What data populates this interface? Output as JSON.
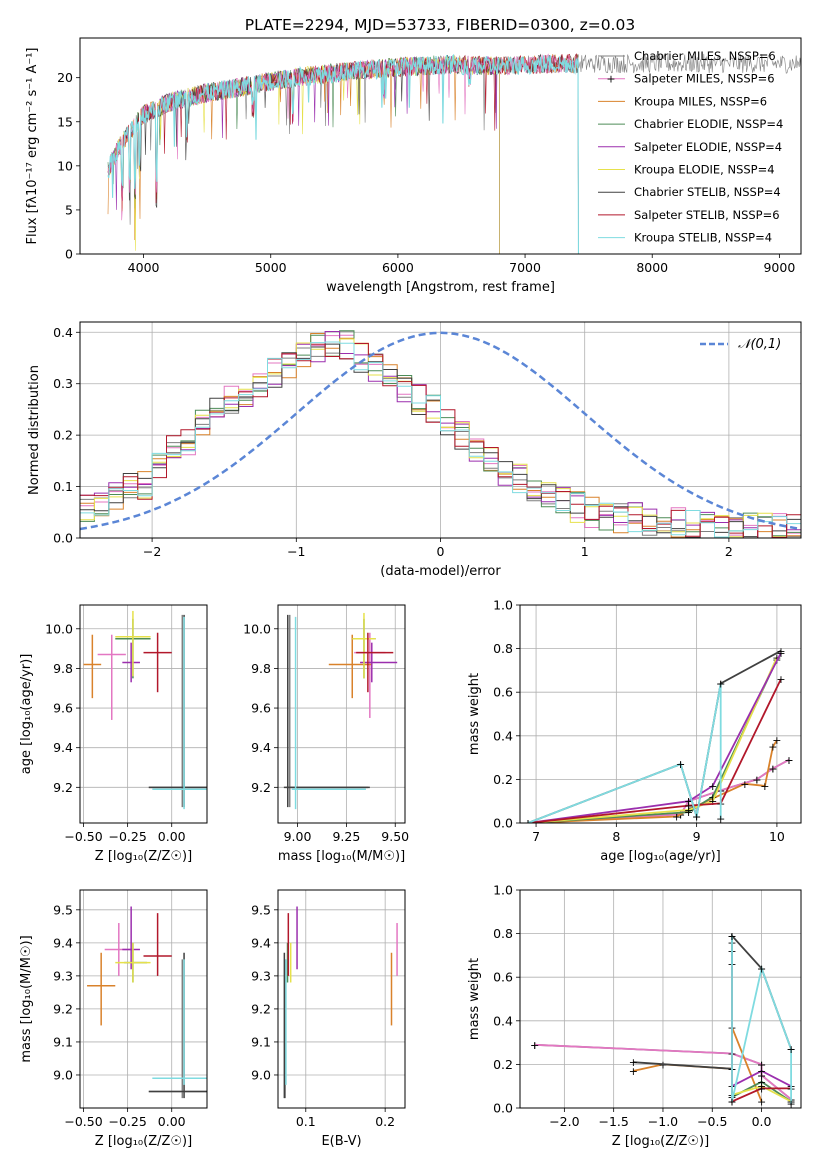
{
  "figure_title": "PLATE=2294, MJD=53733, FIBERID=0300, z=0.03",
  "series_colors": [
    "#7f7f7f",
    "#e377c2",
    "#d9822b",
    "#4d8c57",
    "#9b2fae",
    "#e6e14b",
    "#404040",
    "#b2182b",
    "#7fdbe0"
  ],
  "chart_data": [
    {
      "id": "spectrum",
      "type": "line",
      "xlabel": "wavelength [Angstrom, rest frame]",
      "ylabel": "Flux [fλ10⁻¹⁷ erg cm⁻² s⁻¹ A⁻¹]",
      "xlim": [
        3500,
        9170
      ],
      "ylim": [
        0,
        24.5
      ],
      "xticks": [
        4000,
        5000,
        6000,
        7000,
        8000,
        9000
      ],
      "yticks": [
        0,
        5,
        10,
        15,
        20
      ],
      "grid": false,
      "legend_position": "top-right",
      "series": [
        {
          "name": "Chabrier MILES, N_SSP=6",
          "end": 9170
        },
        {
          "name": "Salpeter MILES, N_SSP=6",
          "end": 7420
        },
        {
          "name": "Kroupa MILES, N_SSP=6",
          "end": 7420
        },
        {
          "name": "Chabrier ELODIE, N_SSP=4",
          "end": 6800
        },
        {
          "name": "Salpeter ELODIE, N_SSP=4",
          "end": 6800
        },
        {
          "name": "Kroupa ELODIE, N_SSP=4",
          "end": 6800
        },
        {
          "name": "Chabrier STELIB, N_SSP=4",
          "end": 7420
        },
        {
          "name": "Salpeter STELIB, N_SSP=6",
          "end": 7420
        },
        {
          "name": "Kroupa STELIB, N_SSP=4",
          "end": 7420
        }
      ],
      "continuum": {
        "x": [
          3720,
          3800,
          3900,
          4000,
          4200,
          4500,
          4800,
          5000,
          5300,
          5600,
          6000,
          6400,
          6800,
          7200,
          7420
        ],
        "y": [
          9.5,
          12,
          14,
          15.8,
          17.2,
          18.3,
          19,
          19.6,
          20.2,
          20.7,
          21.2,
          21.5,
          21.3,
          21.6,
          21.6
        ]
      }
    },
    {
      "id": "residuals",
      "type": "histogram",
      "xlabel": "(data-model)/error",
      "ylabel": "Normed distribution",
      "xlim": [
        -2.5,
        2.5
      ],
      "ylim": [
        0,
        0.42
      ],
      "xticks": [
        -2,
        -1,
        0,
        1,
        2
      ],
      "yticks": [
        0.0,
        0.1,
        0.2,
        0.3,
        0.4
      ],
      "grid": true,
      "legend_position": "top-right",
      "reference_curve": {
        "name": "𝒩(0,1)",
        "style": "dashed"
      },
      "bin_width": 0.1,
      "mean_profile": [
        0.055,
        0.05,
        0.06,
        0.075,
        0.08,
        0.09,
        0.1,
        0.1,
        0.105,
        0.12,
        0.14,
        0.16,
        0.175,
        0.185,
        0.19,
        0.215,
        0.23,
        0.24,
        0.245,
        0.25,
        0.27,
        0.275,
        0.285,
        0.29,
        0.3,
        0.31,
        0.32,
        0.33,
        0.34,
        0.35,
        0.35,
        0.36,
        0.37,
        0.365,
        0.375,
        0.37,
        0.375,
        0.36,
        0.35,
        0.34,
        0.33,
        0.32,
        0.31,
        0.3,
        0.29,
        0.285,
        0.27,
        0.26,
        0.25,
        0.245,
        0.23,
        0.22,
        0.2,
        0.19,
        0.175,
        0.165,
        0.155,
        0.14,
        0.13,
        0.12,
        0.115,
        0.1,
        0.095,
        0.09,
        0.085,
        0.075,
        0.07,
        0.065,
        0.06,
        0.055,
        0.05,
        0.05,
        0.045,
        0.045,
        0.04,
        0.04,
        0.04,
        0.035,
        0.035,
        0.03,
        0.03,
        0.03,
        0.03,
        0.025,
        0.025,
        0.025,
        0.025,
        0.025,
        0.02,
        0.02,
        0.02,
        0.02,
        0.02,
        0.02,
        0.02,
        0.02,
        0.02,
        0.02,
        0.02,
        0.02,
        0.02
      ]
    },
    {
      "id": "age-vs-Z",
      "type": "errorbar",
      "xlabel": "Z [log₁₀(Z/Z☉)]",
      "ylabel": "age  [log₁₀(age/yr)]",
      "xlim": [
        -0.52,
        0.2
      ],
      "ylim": [
        9.02,
        10.12
      ],
      "xticks": [
        -0.5,
        -0.25,
        0.0
      ],
      "yticks": [
        9.2,
        9.4,
        9.6,
        9.8,
        10.0
      ],
      "grid": true,
      "points": [
        {
          "x": 0.06,
          "y": 9.2,
          "xerr": [
            0.19,
            0.14
          ],
          "yerr": [
            0.1,
            0.87
          ]
        },
        {
          "x": -0.34,
          "y": 9.87,
          "xerr": [
            0.08,
            0.08
          ],
          "yerr": [
            0.33,
            0.1
          ]
        },
        {
          "x": -0.45,
          "y": 9.82,
          "xerr": [
            0.05,
            0.05
          ],
          "yerr": [
            0.17,
            0.15
          ]
        },
        {
          "x": -0.22,
          "y": 9.95,
          "xerr": [
            0.1,
            0.1
          ],
          "yerr": [
            0.2,
            0.1
          ]
        },
        {
          "x": -0.23,
          "y": 9.83,
          "xerr": [
            0.05,
            0.05
          ],
          "yerr": [
            0.1,
            0.1
          ]
        },
        {
          "x": -0.22,
          "y": 9.96,
          "xerr": [
            0.1,
            0.1
          ],
          "yerr": [
            0.2,
            0.13
          ]
        },
        {
          "x": 0.07,
          "y": 9.2,
          "xerr": [
            0.2,
            0.14
          ],
          "yerr": [
            0.1,
            0.87
          ]
        },
        {
          "x": -0.08,
          "y": 9.88,
          "xerr": [
            0.08,
            0.08
          ],
          "yerr": [
            0.2,
            0.1
          ]
        },
        {
          "x": 0.07,
          "y": 9.19,
          "xerr": [
            0.18,
            0.14
          ],
          "yerr": [
            0.1,
            0.87
          ]
        }
      ]
    },
    {
      "id": "age-vs-mass",
      "type": "errorbar",
      "xlabel": "mass [log₁₀(M/M☉)]",
      "ylabel": "",
      "xlim": [
        8.9,
        9.55
      ],
      "ylim": [
        9.02,
        10.12
      ],
      "xticks": [
        9.0,
        9.25,
        9.5
      ],
      "yticks": [
        9.2,
        9.4,
        9.6,
        9.8,
        10.0
      ],
      "grid": true,
      "points": [
        {
          "x": 8.96,
          "y": 9.2,
          "xerr": [
            0.02,
            0.4
          ],
          "yerr": [
            0.1,
            0.87
          ]
        },
        {
          "x": 9.37,
          "y": 9.88,
          "xerr": [
            0.08,
            0.08
          ],
          "yerr": [
            0.33,
            0.1
          ]
        },
        {
          "x": 9.28,
          "y": 9.82,
          "xerr": [
            0.12,
            0.1
          ],
          "yerr": [
            0.17,
            0.15
          ]
        },
        {
          "x": 9.34,
          "y": 9.95,
          "xerr": [
            0.06,
            0.06
          ],
          "yerr": [
            0.2,
            0.1
          ]
        },
        {
          "x": 9.38,
          "y": 9.83,
          "xerr": [
            0.06,
            0.13
          ],
          "yerr": [
            0.1,
            0.1
          ]
        },
        {
          "x": 9.34,
          "y": 9.95,
          "xerr": [
            0.06,
            0.06
          ],
          "yerr": [
            0.2,
            0.13
          ]
        },
        {
          "x": 8.95,
          "y": 9.2,
          "xerr": [
            0.02,
            0.42
          ],
          "yerr": [
            0.1,
            0.87
          ]
        },
        {
          "x": 9.36,
          "y": 9.88,
          "xerr": [
            0.06,
            0.13
          ],
          "yerr": [
            0.2,
            0.1
          ]
        },
        {
          "x": 8.99,
          "y": 9.19,
          "xerr": [
            0.02,
            0.36
          ],
          "yerr": [
            0.1,
            0.87
          ]
        }
      ]
    },
    {
      "id": "weight-vs-age",
      "type": "line",
      "xlabel": "age  [log₁₀(age/yr)]",
      "ylabel": "mass weight",
      "xlim": [
        6.8,
        10.3
      ],
      "ylim": [
        0,
        1.0
      ],
      "xticks": [
        7,
        8,
        9,
        10
      ],
      "yticks": [
        0.0,
        0.2,
        0.4,
        0.6,
        0.8,
        1.0
      ],
      "grid": true,
      "series": [
        {
          "x": [
            6.9,
            8.8,
            8.9,
            9.3,
            9.75,
            9.95,
            10.15
          ],
          "y": [
            0.0,
            0.04,
            0.1,
            0.15,
            0.2,
            0.25,
            0.29
          ]
        },
        {
          "x": [
            6.9,
            8.8,
            8.9,
            9.3,
            9.75,
            9.95,
            10.15
          ],
          "y": [
            0.0,
            0.04,
            0.1,
            0.15,
            0.2,
            0.25,
            0.29
          ]
        },
        {
          "x": [
            6.9,
            8.75,
            8.95,
            9.6,
            9.85,
            9.95,
            10.0
          ],
          "y": [
            0.0,
            0.03,
            0.07,
            0.18,
            0.17,
            0.35,
            0.38
          ]
        },
        {
          "x": [
            6.9,
            8.9,
            9.2,
            10.0
          ],
          "y": [
            0.0,
            0.05,
            0.12,
            0.75
          ]
        },
        {
          "x": [
            6.9,
            8.9,
            9.2,
            10.05
          ],
          "y": [
            0.0,
            0.1,
            0.17,
            0.78
          ]
        },
        {
          "x": [
            6.9,
            8.9,
            9.2,
            10.0
          ],
          "y": [
            0.0,
            0.06,
            0.1,
            0.76
          ]
        },
        {
          "x": [
            6.9,
            8.8,
            9.0,
            9.3,
            10.05
          ],
          "y": [
            0.0,
            0.27,
            0.03,
            0.64,
            0.79
          ]
        },
        {
          "x": [
            6.9,
            8.9,
            9.3,
            10.05
          ],
          "y": [
            0.0,
            0.08,
            0.09,
            0.66
          ]
        },
        {
          "x": [
            6.9,
            8.8,
            9.0,
            9.3,
            9.3
          ],
          "y": [
            0.0,
            0.27,
            0.03,
            0.64,
            0.02
          ]
        }
      ]
    },
    {
      "id": "mass-vs-Z",
      "type": "errorbar",
      "xlabel": "Z [log₁₀(Z/Z☉)]",
      "ylabel": "mass [log₁₀(M/M☉)]",
      "xlim": [
        -0.52,
        0.2
      ],
      "ylim": [
        8.9,
        9.56
      ],
      "xticks": [
        -0.5,
        -0.25,
        0.0
      ],
      "yticks": [
        9.0,
        9.1,
        9.2,
        9.3,
        9.4,
        9.5
      ],
      "grid": true,
      "points": [
        {
          "x": 0.06,
          "y": 8.95,
          "xerr": [
            0.19,
            0.14
          ],
          "yerr": [
            0.02,
            0.4
          ]
        },
        {
          "x": -0.3,
          "y": 9.38,
          "xerr": [
            0.08,
            0.08
          ],
          "yerr": [
            0.08,
            0.08
          ]
        },
        {
          "x": -0.4,
          "y": 9.27,
          "xerr": [
            0.08,
            0.08
          ],
          "yerr": [
            0.12,
            0.1
          ]
        },
        {
          "x": -0.22,
          "y": 9.34,
          "xerr": [
            0.05,
            0.08
          ],
          "yerr": [
            0.06,
            0.06
          ]
        },
        {
          "x": -0.23,
          "y": 9.38,
          "xerr": [
            0.05,
            0.05
          ],
          "yerr": [
            0.06,
            0.13
          ]
        },
        {
          "x": -0.22,
          "y": 9.34,
          "xerr": [
            0.1,
            0.1
          ],
          "yerr": [
            0.06,
            0.06
          ]
        },
        {
          "x": 0.07,
          "y": 8.95,
          "xerr": [
            0.2,
            0.14
          ],
          "yerr": [
            0.02,
            0.42
          ]
        },
        {
          "x": -0.08,
          "y": 9.36,
          "xerr": [
            0.08,
            0.08
          ],
          "yerr": [
            0.06,
            0.13
          ]
        },
        {
          "x": 0.07,
          "y": 8.99,
          "xerr": [
            0.18,
            0.14
          ],
          "yerr": [
            0.02,
            0.36
          ]
        }
      ]
    },
    {
      "id": "mass-vs-ebv",
      "type": "errorbar",
      "xlabel": "E(B-V)",
      "ylabel": "",
      "xlim": [
        0.065,
        0.225
      ],
      "ylim": [
        8.9,
        9.56
      ],
      "xticks": [
        0.1,
        0.2
      ],
      "yticks": [
        9.0,
        9.1,
        9.2,
        9.3,
        9.4,
        9.5
      ],
      "grid": true,
      "points": [
        {
          "x": 0.074,
          "y": 8.95,
          "xerr": [
            0,
            0
          ],
          "yerr": [
            0.02,
            0.4
          ]
        },
        {
          "x": 0.215,
          "y": 9.38,
          "xerr": [
            0,
            0
          ],
          "yerr": [
            0.08,
            0.08
          ]
        },
        {
          "x": 0.208,
          "y": 9.27,
          "xerr": [
            0,
            0
          ],
          "yerr": [
            0.12,
            0.1
          ]
        },
        {
          "x": 0.077,
          "y": 9.34,
          "xerr": [
            0,
            0
          ],
          "yerr": [
            0.06,
            0.06
          ]
        },
        {
          "x": 0.089,
          "y": 9.38,
          "xerr": [
            0,
            0
          ],
          "yerr": [
            0.06,
            0.13
          ]
        },
        {
          "x": 0.081,
          "y": 9.34,
          "xerr": [
            0,
            0
          ],
          "yerr": [
            0.06,
            0.06
          ]
        },
        {
          "x": 0.073,
          "y": 8.95,
          "xerr": [
            0,
            0
          ],
          "yerr": [
            0.02,
            0.42
          ]
        },
        {
          "x": 0.078,
          "y": 9.36,
          "xerr": [
            0,
            0
          ],
          "yerr": [
            0.06,
            0.13
          ]
        },
        {
          "x": 0.075,
          "y": 8.99,
          "xerr": [
            0,
            0
          ],
          "yerr": [
            0.02,
            0.36
          ]
        }
      ]
    },
    {
      "id": "weight-vs-Z",
      "type": "line",
      "xlabel": "Z [log₁₀(Z/Z☉)]",
      "ylabel": "mass weight",
      "xlim": [
        -2.45,
        0.4
      ],
      "ylim": [
        0,
        1.0
      ],
      "xticks": [
        -2.0,
        -1.5,
        -1.0,
        -0.5,
        0.0
      ],
      "yticks": [
        0.0,
        0.2,
        0.4,
        0.6,
        0.8,
        1.0
      ],
      "grid": true,
      "series": [
        {
          "x": [
            -2.3,
            -0.3,
            0.0,
            0.0,
            0.3
          ],
          "y": [
            0.29,
            0.25,
            0.2,
            0.15,
            0.04
          ]
        },
        {
          "x": [
            -2.3,
            -0.3,
            0.0,
            0.0,
            0.3
          ],
          "y": [
            0.29,
            0.25,
            0.2,
            0.15,
            0.04
          ]
        },
        {
          "x": [
            -1.3,
            -1.0,
            -0.3,
            -0.3,
            0.0
          ],
          "y": [
            0.17,
            0.2,
            0.18,
            0.37,
            0.03
          ]
        },
        {
          "x": [
            -0.3,
            -0.3,
            0.0,
            0.3
          ],
          "y": [
            0.79,
            0.05,
            0.12,
            0.03
          ]
        },
        {
          "x": [
            -0.3,
            -0.3,
            0.0,
            0.3
          ],
          "y": [
            0.72,
            0.1,
            0.17,
            0.1
          ]
        },
        {
          "x": [
            -0.3,
            -0.3,
            0.0,
            0.3
          ],
          "y": [
            0.76,
            0.06,
            0.1,
            0.03
          ]
        },
        {
          "x": [
            -1.3,
            -0.3,
            -0.3,
            0.0,
            0.3
          ],
          "y": [
            0.21,
            0.18,
            0.79,
            0.64,
            0.27
          ]
        },
        {
          "x": [
            -0.3,
            -0.3,
            0.0,
            0.3
          ],
          "y": [
            0.66,
            0.03,
            0.09,
            0.09
          ]
        },
        {
          "x": [
            -0.3,
            -0.3,
            0.0,
            0.3,
            0.3
          ],
          "y": [
            0.79,
            0.03,
            0.64,
            0.27,
            0.02
          ]
        }
      ]
    }
  ]
}
